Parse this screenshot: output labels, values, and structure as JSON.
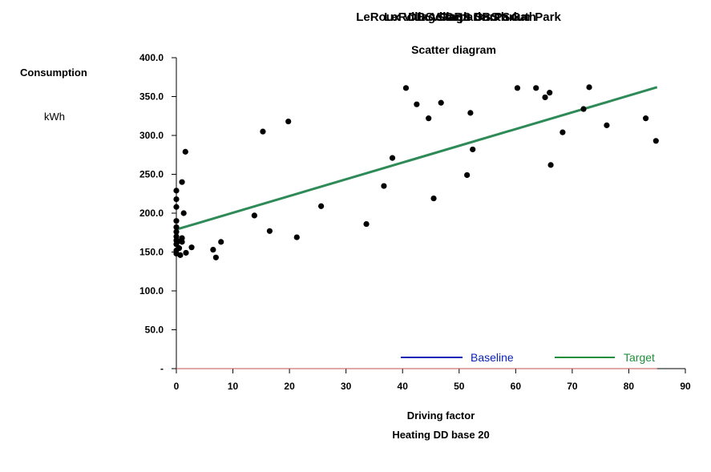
{
  "chart_data": {
    "type": "scatter",
    "title_layers": [
      "LeRoux Village DBS South",
      "Carpark",
      "LeRoux Village DBS South Car Park",
      "DBS South CarPark"
    ],
    "subtitle": "Scatter diagram",
    "ylabel": "Consumption",
    "yunit": "kWh",
    "xlabel": "Driving factor",
    "xsublabel": "Heating DD base 20",
    "xlim": [
      0,
      90
    ],
    "ylim": [
      0,
      400
    ],
    "x_ticks": [
      0,
      10,
      20,
      30,
      40,
      50,
      60,
      70,
      80,
      90
    ],
    "x_tick_labels": [
      "0",
      "10",
      "20",
      "30",
      "40",
      "50",
      "60",
      "70",
      "80",
      "90"
    ],
    "y_ticks": [
      0,
      50,
      100,
      150,
      200,
      250,
      300,
      350,
      400
    ],
    "y_tick_labels": [
      "-",
      "50.0",
      "100.0",
      "150.0",
      "200.0",
      "250.0",
      "300.0",
      "350.0",
      "400.0"
    ],
    "grid": false,
    "legend_position": "bottom-right",
    "legend": [
      {
        "name": "Baseline",
        "color": "#0b22b5"
      },
      {
        "name": "Target",
        "color": "#1f8f3a"
      }
    ],
    "series": [
      {
        "name": "Consumption points",
        "color": "#000000",
        "points": [
          [
            0,
            148
          ],
          [
            0,
            152
          ],
          [
            0,
            160
          ],
          [
            0,
            165
          ],
          [
            0,
            170
          ],
          [
            0,
            176
          ],
          [
            0,
            182
          ],
          [
            0,
            190
          ],
          [
            0,
            208
          ],
          [
            0,
            218
          ],
          [
            0,
            229
          ],
          [
            0.3,
            164
          ],
          [
            0.5,
            155
          ],
          [
            0.7,
            146
          ],
          [
            1,
            163
          ],
          [
            1,
            168
          ],
          [
            1,
            240
          ],
          [
            1.3,
            200
          ],
          [
            1.6,
            279
          ],
          [
            1.7,
            149
          ],
          [
            2.7,
            156
          ],
          [
            6.5,
            153
          ],
          [
            7,
            143
          ],
          [
            7.9,
            163
          ],
          [
            13.8,
            197
          ],
          [
            15.3,
            305
          ],
          [
            16.5,
            177
          ],
          [
            19.8,
            318
          ],
          [
            21.3,
            169
          ],
          [
            25.6,
            209
          ],
          [
            33.6,
            186
          ],
          [
            36.7,
            235
          ],
          [
            38.2,
            271
          ],
          [
            40.6,
            361
          ],
          [
            42.5,
            340
          ],
          [
            44.6,
            322
          ],
          [
            45.5,
            219
          ],
          [
            46.8,
            342
          ],
          [
            51.4,
            249
          ],
          [
            52,
            329
          ],
          [
            52.4,
            282
          ],
          [
            60.3,
            361
          ],
          [
            63.6,
            361
          ],
          [
            65.2,
            349
          ],
          [
            66,
            355
          ],
          [
            66.2,
            262
          ],
          [
            68.3,
            304
          ],
          [
            72,
            334
          ],
          [
            73,
            362
          ],
          [
            76.1,
            313
          ],
          [
            83,
            322
          ],
          [
            84.8,
            293
          ]
        ]
      }
    ],
    "target_line": {
      "name": "Target",
      "x": [
        0,
        85
      ],
      "y": [
        179,
        362
      ]
    },
    "baseline_line": {
      "name": "Baseline",
      "x": [
        0,
        85
      ],
      "y": [
        0,
        0
      ]
    }
  }
}
